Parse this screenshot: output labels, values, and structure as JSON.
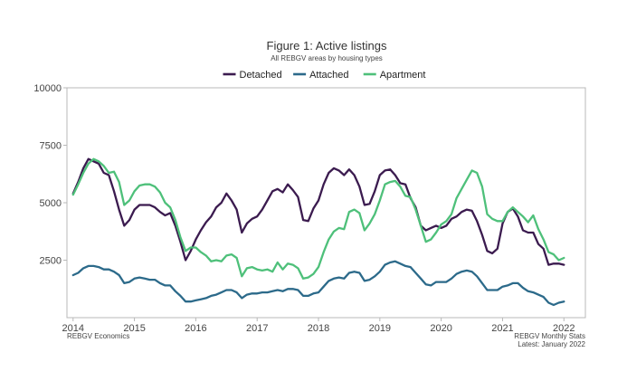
{
  "chart_data": {
    "type": "line",
    "title": "Figure 1: Active listings",
    "subtitle": "All REBGV areas by housing types",
    "xlabel": "",
    "ylabel": "",
    "xlim": [
      2013.9,
      2022.35
    ],
    "ylim": [
      0,
      10000
    ],
    "x_ticks": [
      2014,
      2015,
      2016,
      2017,
      2018,
      2019,
      2020,
      2021,
      2022
    ],
    "y_ticks": [
      2500,
      5000,
      7500,
      10000
    ],
    "grid": false,
    "legend_position": "top-center",
    "colors": {
      "Detached": "#3b1b4f",
      "Attached": "#2c6a8a",
      "Apartment": "#4ec07a"
    },
    "x": [
      2014.0,
      2014.083,
      2014.167,
      2014.25,
      2014.333,
      2014.417,
      2014.5,
      2014.583,
      2014.667,
      2014.75,
      2014.833,
      2014.917,
      2015.0,
      2015.083,
      2015.167,
      2015.25,
      2015.333,
      2015.417,
      2015.5,
      2015.583,
      2015.667,
      2015.75,
      2015.833,
      2015.917,
      2016.0,
      2016.083,
      2016.167,
      2016.25,
      2016.333,
      2016.417,
      2016.5,
      2016.583,
      2016.667,
      2016.75,
      2016.833,
      2016.917,
      2017.0,
      2017.083,
      2017.167,
      2017.25,
      2017.333,
      2017.417,
      2017.5,
      2017.583,
      2017.667,
      2017.75,
      2017.833,
      2017.917,
      2018.0,
      2018.083,
      2018.167,
      2018.25,
      2018.333,
      2018.417,
      2018.5,
      2018.583,
      2018.667,
      2018.75,
      2018.833,
      2018.917,
      2019.0,
      2019.083,
      2019.167,
      2019.25,
      2019.333,
      2019.417,
      2019.5,
      2019.583,
      2019.667,
      2019.75,
      2019.833,
      2019.917,
      2020.0,
      2020.083,
      2020.167,
      2020.25,
      2020.333,
      2020.417,
      2020.5,
      2020.583,
      2020.667,
      2020.75,
      2020.833,
      2020.917,
      2021.0,
      2021.083,
      2021.167,
      2021.25,
      2021.333,
      2021.417,
      2021.5,
      2021.583,
      2021.667,
      2021.75,
      2021.833,
      2021.917,
      2022.0
    ],
    "series": [
      {
        "name": "Detached",
        "values": [
          5400,
          5900,
          6500,
          6900,
          6800,
          6700,
          6300,
          6200,
          5500,
          4700,
          4000,
          4250,
          4700,
          4900,
          4900,
          4900,
          4800,
          4600,
          4450,
          4550,
          4000,
          3300,
          2500,
          2900,
          3400,
          3800,
          4150,
          4400,
          4800,
          5000,
          5400,
          5100,
          4700,
          3700,
          4100,
          4300,
          4400,
          4700,
          5100,
          5500,
          5600,
          5450,
          5800,
          5550,
          5250,
          4250,
          4200,
          4750,
          5100,
          5800,
          6300,
          6500,
          6400,
          6200,
          6450,
          6200,
          5700,
          4900,
          4950,
          5500,
          6200,
          6400,
          6450,
          6200,
          5850,
          5800,
          5200,
          4800,
          4000,
          3800,
          3900,
          4000,
          3900,
          4000,
          4300,
          4400,
          4600,
          4700,
          4650,
          4200,
          3600,
          2900,
          2800,
          3000,
          4100,
          4600,
          4750,
          4400,
          3800,
          3700,
          3700,
          3200,
          3000,
          2300,
          2350,
          2350,
          2300
        ]
      },
      {
        "name": "Attached",
        "values": [
          1850,
          1950,
          2150,
          2250,
          2250,
          2200,
          2100,
          2100,
          2000,
          1850,
          1500,
          1550,
          1700,
          1750,
          1700,
          1650,
          1650,
          1500,
          1400,
          1400,
          1150,
          950,
          700,
          700,
          750,
          800,
          850,
          950,
          1000,
          1100,
          1200,
          1200,
          1100,
          850,
          1000,
          1050,
          1050,
          1100,
          1100,
          1150,
          1200,
          1150,
          1250,
          1250,
          1200,
          950,
          950,
          1050,
          1100,
          1350,
          1600,
          1700,
          1750,
          1700,
          1950,
          2000,
          1950,
          1600,
          1650,
          1800,
          2000,
          2300,
          2400,
          2450,
          2350,
          2250,
          2200,
          1950,
          1700,
          1450,
          1400,
          1550,
          1550,
          1550,
          1700,
          1900,
          2000,
          2050,
          2000,
          1800,
          1500,
          1200,
          1200,
          1200,
          1350,
          1400,
          1500,
          1500,
          1300,
          1150,
          1100,
          1000,
          900,
          650,
          550,
          650,
          700
        ]
      },
      {
        "name": "Apartment",
        "values": [
          5350,
          5800,
          6300,
          6700,
          6900,
          6800,
          6600,
          6300,
          6350,
          5900,
          4900,
          5100,
          5500,
          5750,
          5800,
          5800,
          5700,
          5450,
          5000,
          4800,
          4250,
          3500,
          2900,
          3050,
          3050,
          2850,
          2700,
          2450,
          2500,
          2450,
          2700,
          2750,
          2600,
          1800,
          2150,
          2200,
          2100,
          2050,
          2100,
          2000,
          2400,
          2100,
          2350,
          2300,
          2150,
          1700,
          1750,
          1900,
          2200,
          2850,
          3400,
          3750,
          3900,
          3850,
          4600,
          4700,
          4550,
          3800,
          4100,
          4500,
          5100,
          5800,
          5900,
          5950,
          5700,
          5300,
          5250,
          4700,
          4000,
          3300,
          3400,
          3700,
          4050,
          4200,
          4500,
          5200,
          5600,
          6000,
          6400,
          6300,
          5700,
          4500,
          4300,
          4200,
          4200,
          4600,
          4800,
          4600,
          4400,
          4150,
          4450,
          3850,
          3400,
          2850,
          2750,
          2500,
          2600
        ]
      }
    ],
    "notes": {
      "left": "REBGV Economics",
      "right": [
        "REBGV Monthly Stats",
        "Latest: January 2022"
      ]
    }
  }
}
